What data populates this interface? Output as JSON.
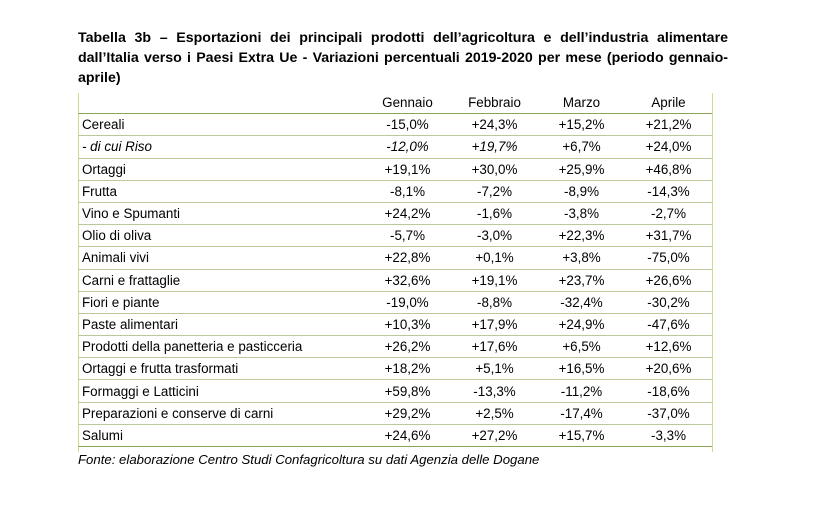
{
  "title": "Tabella 3b – Esportazioni dei principali prodotti dell’agricoltura e dell’industria alimentare dall’Italia verso i Paesi Extra Ue - Variazioni percentuali 2019-2020 per mese (periodo gennaio-aprile)",
  "table": {
    "columns": [
      "Gennaio",
      "Febbraio",
      "Marzo",
      "Aprile"
    ],
    "rows": [
      {
        "name": "Cereali",
        "values": [
          "-15,0%",
          "+24,3%",
          "+15,2%",
          "+21,2%"
        ]
      },
      {
        "name": "- di cui Riso",
        "values": [
          "-12,0%",
          "+19,7%",
          "+6,7%",
          "+24,0%"
        ]
      },
      {
        "name": "Ortaggi",
        "values": [
          "+19,1%",
          "+30,0%",
          "+25,9%",
          "+46,8%"
        ]
      },
      {
        "name": "Frutta",
        "values": [
          "-8,1%",
          "-7,2%",
          "-8,9%",
          "-14,3%"
        ]
      },
      {
        "name": "Vino e Spumanti",
        "values": [
          "+24,2%",
          "-1,6%",
          "-3,8%",
          "-2,7%"
        ]
      },
      {
        "name": "Olio di oliva",
        "values": [
          "-5,7%",
          "-3,0%",
          "+22,3%",
          "+31,7%"
        ]
      },
      {
        "name": "Animali vivi",
        "values": [
          "+22,8%",
          "+0,1%",
          "+3,8%",
          "-75,0%"
        ]
      },
      {
        "name": "Carni e frattaglie",
        "values": [
          "+32,6%",
          "+19,1%",
          "+23,7%",
          "+26,6%"
        ]
      },
      {
        "name": "Fiori e piante",
        "values": [
          "-19,0%",
          "-8,8%",
          "-32,4%",
          "-30,2%"
        ]
      },
      {
        "name": "Paste alimentari",
        "values": [
          "+10,3%",
          "+17,9%",
          "+24,9%",
          "-47,6%"
        ]
      },
      {
        "name": "Prodotti della panetteria e pasticceria",
        "values": [
          "+26,2%",
          "+17,6%",
          "+6,5%",
          "+12,6%"
        ]
      },
      {
        "name": "Ortaggi e frutta trasformati",
        "values": [
          "+18,2%",
          "+5,1%",
          "+16,5%",
          "+20,6%"
        ]
      },
      {
        "name": "Formaggi e Latticini",
        "values": [
          "+59,8%",
          "-13,3%",
          "-11,2%",
          "-18,6%"
        ]
      },
      {
        "name": "Preparazioni e conserve di carni",
        "values": [
          "+29,2%",
          "+2,5%",
          "-17,4%",
          "-37,0%"
        ]
      },
      {
        "name": "Salumi",
        "values": [
          "+24,6%",
          "+27,2%",
          "+15,7%",
          "-3,3%"
        ]
      }
    ]
  },
  "source": "Fonte: elaborazione Centro Studi Confagricoltura su dati Agenzia delle Dogane",
  "colors": {
    "rule": "#b9c99a",
    "rule_strong": "#8aa25a"
  }
}
